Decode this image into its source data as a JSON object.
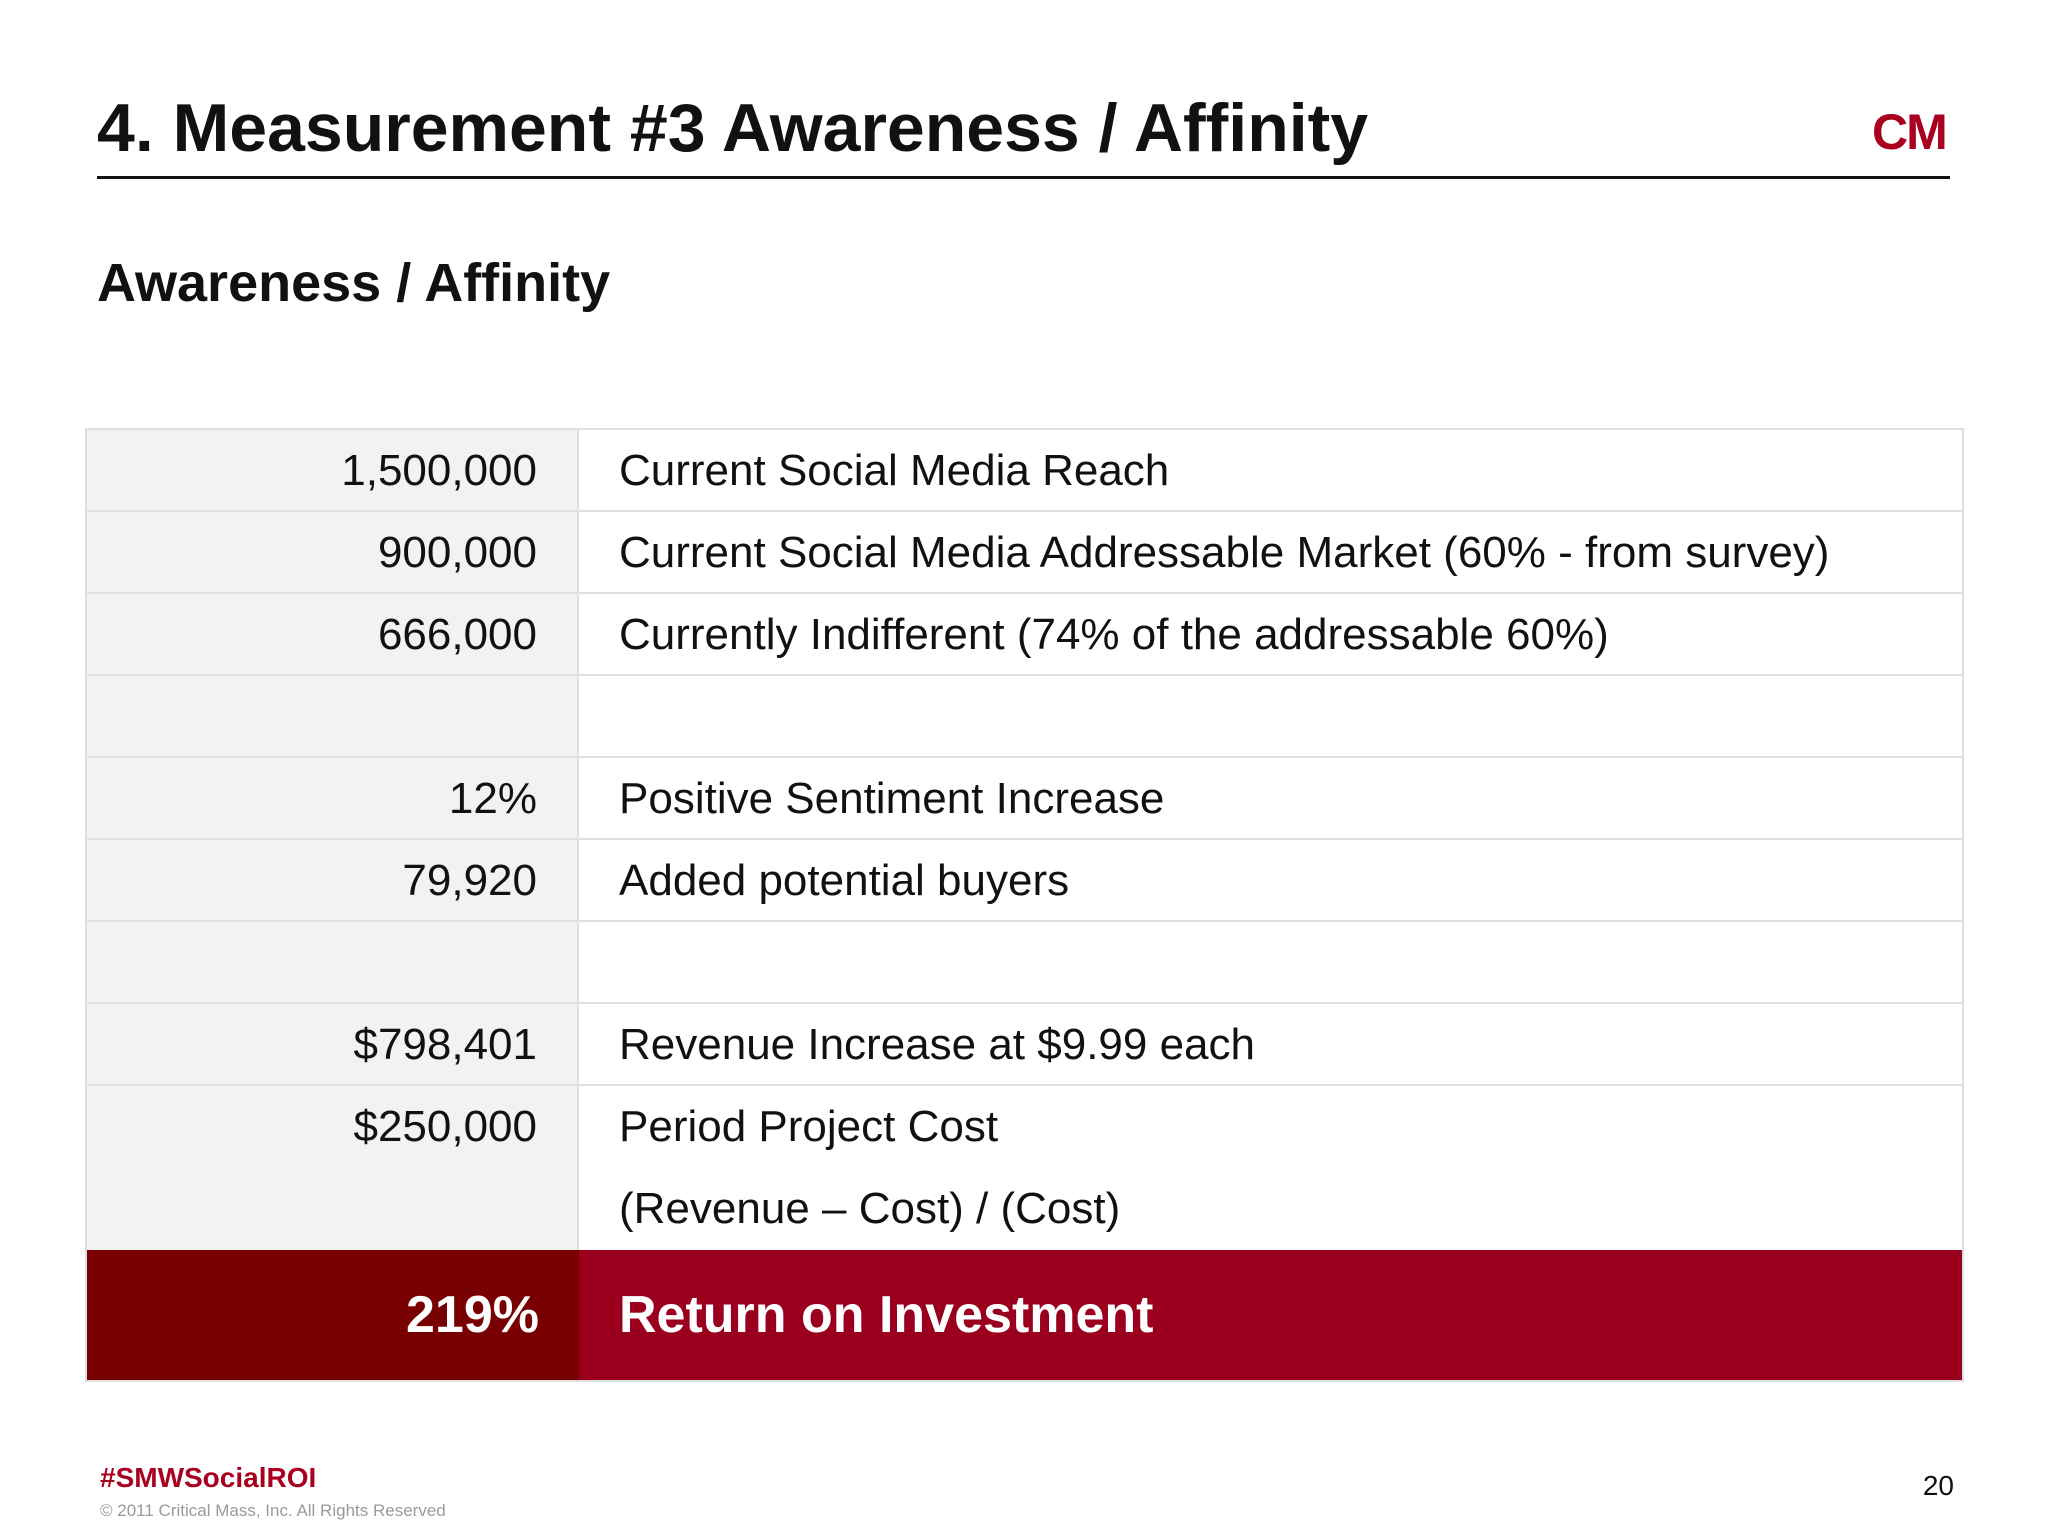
{
  "header": {
    "title": "4. Measurement #3 Awareness / Affinity",
    "logo_text": "CM",
    "logo_color": "#a8001e"
  },
  "subtitle": "Awareness / Affinity",
  "table": {
    "rows": [
      {
        "value": "1,500,000",
        "label": "Current Social Media Reach"
      },
      {
        "value": "900,000",
        "label": "Current Social Media Addressable Market (60% - from survey)"
      },
      {
        "value": "666,000",
        "label": "Currently Indifferent (74% of the addressable 60%)"
      },
      {
        "value": "",
        "label": ""
      },
      {
        "value": "12%",
        "label": "Positive Sentiment Increase"
      },
      {
        "value": "79,920",
        "label": "Added potential buyers"
      },
      {
        "value": "",
        "label": ""
      },
      {
        "value": "$798,401",
        "label": "Revenue Increase at $9.99 each"
      },
      {
        "value": "$250,000",
        "label": "Period Project Cost",
        "label2": "(Revenue – Cost) / (Cost)"
      }
    ],
    "roi": {
      "value": "219%",
      "label": "Return on Investment"
    },
    "colors": {
      "roi_value_bg": "#780000",
      "roi_label_bg": "#9a001e",
      "value_col_bg": "#f2f2f2"
    }
  },
  "footer": {
    "hashtag": "#SMWSocialROI",
    "copyright": "© 2011 Critical Mass, Inc. All Rights Reserved",
    "page_number": "20"
  }
}
